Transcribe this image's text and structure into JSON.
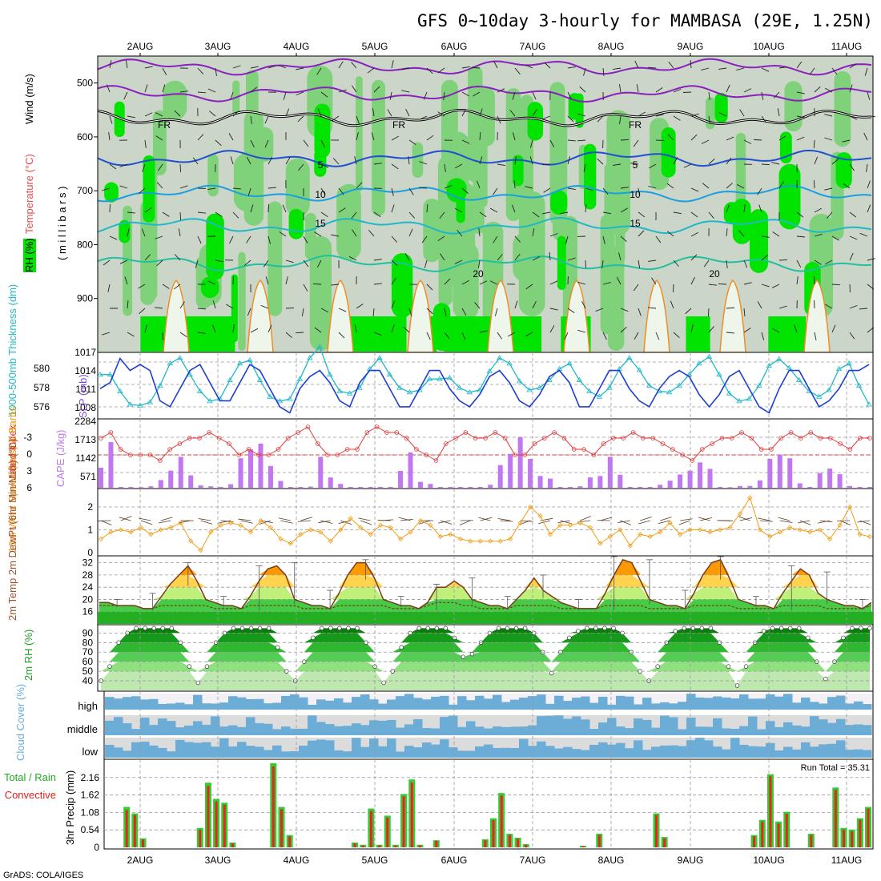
{
  "header": {
    "title": "GFS 0~10day 3-hourly for MAMBASA (29E, 1.25N)",
    "footer": "GrADS: COLA/IGES"
  },
  "x_axis": {
    "date_labels": [
      "2AUG",
      "3AUG",
      "4AUG",
      "5AUG",
      "6AUG",
      "7AUG",
      "8AUG",
      "9AUG",
      "10AUG",
      "11AUG"
    ]
  },
  "colors": {
    "rh_fill": [
      "#cbd6c8",
      "#7fd17a",
      "#00e400"
    ],
    "slp_line": "#1d3ed0",
    "thickness_line": "#22b8c8",
    "lifted_index": "#e03a3a",
    "cape_bar": "#c077f0",
    "wind_speed": "#f39c12",
    "temp_fill": [
      "#ff9900",
      "#ffd34d",
      "#c0f07a",
      "#44cc44"
    ],
    "rh2m_fill": [
      "#0b7d0b",
      "#2fb82f",
      "#8fe07f"
    ],
    "cloud_fill": "#6badd6",
    "precip_total": "#33cc33",
    "precip_conv": "#ee2222"
  },
  "chart_data": [
    {
      "id": "upper_air",
      "type": "heatmap",
      "ylabel_parts": [
        "RH (%)",
        "Temperature (°C)",
        "Wind (m/s)"
      ],
      "ylabel_units": "( m i l l i b a r s )",
      "y_ticks": [
        500,
        600,
        700,
        800,
        900
      ],
      "ylim": [
        1000,
        450
      ],
      "isotherm_labels": [
        {
          "label": "FR",
          "positions": [
            "2AUG",
            "5AUG",
            "8AUG"
          ]
        },
        {
          "label": "5",
          "positions": [
            "4AUG",
            "8AUG"
          ]
        },
        {
          "label": "10",
          "positions": [
            "4AUG",
            "8AUG"
          ]
        },
        {
          "label": "15",
          "positions": [
            "4AUG",
            "8AUG"
          ]
        },
        {
          "label": "20",
          "positions": [
            "6AUG",
            "9AUG"
          ]
        }
      ]
    },
    {
      "id": "slp_thickness",
      "type": "line",
      "ylabel_left": "1000-500mb Thickness (dm)",
      "ylabel_right": "SLP (mb)",
      "left_ticks": [
        "580",
        "578",
        "576"
      ],
      "right_ticks": [
        "1017",
        "1014",
        "1011",
        "1008"
      ],
      "series": [
        {
          "name": "SLP (mb)",
          "ylim": [
            1006,
            1017
          ],
          "values": [
            1011,
            1012,
            1016,
            1014,
            1015,
            1014,
            1009,
            1008,
            1011,
            1014,
            1015,
            1012,
            1009,
            1009,
            1012,
            1015,
            1014,
            1011,
            1008,
            1007,
            1011,
            1013,
            1014,
            1012,
            1009,
            1008,
            1012,
            1014,
            1014,
            1011,
            1008,
            1008,
            1011,
            1014,
            1014,
            1011,
            1009,
            1008,
            1010,
            1013,
            1014,
            1012,
            1009,
            1008,
            1010,
            1013,
            1014,
            1012,
            1008,
            1008,
            1011,
            1014,
            1014,
            1011,
            1009,
            1008,
            1011,
            1013,
            1014,
            1013,
            1010,
            1008,
            1010,
            1013,
            1014,
            1011,
            1008,
            1007,
            1011,
            1014,
            1014,
            1011,
            1008,
            1009,
            1011,
            1014,
            1014,
            1015
          ]
        },
        {
          "name": "1000-500mb Thickness (dm)",
          "ylim": [
            575,
            581
          ],
          "values": [
            579,
            579,
            577.5,
            576.3,
            576.2,
            576.5,
            578,
            580,
            580.5,
            579,
            577.5,
            576.6,
            576.8,
            578.5,
            580,
            580.3,
            578.5,
            577,
            576.6,
            576.8,
            578.6,
            580.5,
            581.5,
            579,
            577.5,
            577.3,
            577.8,
            579.5,
            580.5,
            579,
            577.8,
            577.4,
            577.6,
            578.6,
            578.6,
            578.7,
            577.8,
            577.4,
            577.6,
            579.3,
            580.5,
            580,
            578.4,
            577.6,
            577.8,
            578.5,
            579.5,
            580,
            578.5,
            577.5,
            577,
            577.8,
            579.5,
            580.5,
            579.4,
            578,
            577.5,
            577.4,
            578,
            579,
            580,
            580.6,
            579,
            577.3,
            576.6,
            576.8,
            578,
            579.8,
            580.4,
            579.6,
            578.5,
            577.5,
            577,
            577.6,
            579.5,
            580,
            578,
            576.3
          ]
        }
      ]
    },
    {
      "id": "lifted_cape",
      "type": "bar",
      "ylabel_left": "Lifted Index",
      "ylabel_right": "CAPE (J/kg)",
      "left_ticks": [
        "-3",
        "0",
        "3",
        "6"
      ],
      "right_ticks": [
        "2284",
        "1713",
        "1142",
        "571"
      ],
      "series": [
        {
          "name": "Lifted Index",
          "ylim": [
            6,
            -6
          ],
          "values": [
            -3,
            -4,
            -1,
            0,
            0,
            0,
            1,
            -1,
            -2,
            -3,
            -3,
            -4,
            -3,
            -2,
            0,
            -1,
            0,
            0,
            -1,
            -3,
            -4,
            -5,
            -2,
            0,
            0,
            -1,
            -1,
            -4,
            -5,
            -4,
            -4,
            -3,
            -1,
            0,
            1,
            -2,
            -3,
            -4,
            -3,
            -3,
            -4,
            -3,
            0,
            0,
            -2,
            -3,
            -4,
            -3,
            -1,
            -1,
            0,
            -2,
            -3,
            -3,
            -4,
            -3,
            -3,
            -2,
            -1,
            0,
            1,
            -1,
            -2,
            -3,
            -3,
            -4,
            -3,
            -1,
            -1,
            -3,
            -4,
            -3,
            -4,
            -3,
            -3,
            -2,
            -1,
            -3,
            -3
          ]
        },
        {
          "name": "CAPE (J/kg)",
          "ylim": [
            0,
            2284
          ],
          "values": [
            680,
            1550,
            30,
            30,
            20,
            50,
            260,
            580,
            1050,
            420,
            80,
            50,
            30,
            120,
            1000,
            1300,
            1500,
            740,
            230,
            30,
            30,
            40,
            1050,
            350,
            130,
            30,
            30,
            30,
            30,
            30,
            570,
            1200,
            200,
            130,
            30,
            30,
            30,
            30,
            30,
            100,
            770,
            1150,
            1720,
            980,
            400,
            310,
            30,
            30,
            50,
            350,
            400,
            1050,
            440,
            30,
            30,
            30,
            100,
            240,
            450,
            580,
            860,
            640,
            30,
            20,
            60,
            60,
            250,
            980,
            1120,
            1000,
            150,
            30,
            500,
            650,
            460,
            60,
            30,
            30
          ]
        }
      ]
    },
    {
      "id": "wind10m",
      "type": "line",
      "ylabel": "10m Wind Speed (m/s) & Barbs",
      "y_ticks": [
        2,
        1,
        0
      ],
      "ylim": [
        0,
        2.7
      ],
      "series": [
        {
          "name": "10m Wind Speed",
          "values": [
            0.6,
            0.9,
            1.0,
            0.9,
            1.1,
            0.8,
            1.0,
            1.1,
            1.3,
            0.5,
            0.1,
            0.9,
            1.2,
            1.3,
            1.2,
            0.9,
            1.4,
            1.1,
            0.6,
            0.4,
            0.8,
            1.0,
            0.9,
            0.5,
            1.0,
            1.5,
            1.1,
            0.8,
            1.2,
            1.1,
            0.6,
            0.9,
            1.4,
            1.2,
            0.7,
            0.8,
            0.6,
            0.5,
            0.5,
            0.5,
            0.5,
            0.6,
            1.3,
            2.0,
            1.6,
            0.8,
            1.2,
            1.2,
            1.3,
            1.1,
            0.4,
            0.7,
            1.0,
            0.3,
            0.8,
            0.7,
            0.9,
            1.3,
            0.8,
            1.0,
            1.0,
            0.9,
            1.0,
            1.1,
            1.7,
            2.4,
            1.0,
            0.7,
            0.9,
            1.1,
            1.0,
            0.9,
            1.0,
            0.6,
            1.2,
            2.0,
            0.8,
            0.7
          ]
        }
      ]
    },
    {
      "id": "temp2m",
      "type": "area",
      "ylabel": "2m Temp 2m DewPt (6hr Min/Max) (°C)",
      "y_ticks": [
        32,
        28,
        24,
        20,
        16
      ],
      "ylim": [
        12,
        34
      ],
      "series": [
        {
          "name": "2m Temp",
          "values": [
            19,
            19,
            18,
            18,
            18,
            17,
            17,
            21,
            25,
            28,
            31,
            26,
            20,
            19,
            18,
            18,
            17,
            21,
            26,
            30,
            31,
            28,
            20,
            19,
            18,
            18,
            17,
            22,
            28,
            32,
            32,
            27,
            20,
            19,
            18,
            18,
            17,
            19,
            24,
            24,
            26,
            24,
            20,
            19,
            18,
            18,
            17,
            20,
            23,
            27,
            23,
            21,
            19,
            18,
            17,
            17,
            17,
            22,
            28,
            33,
            32,
            26,
            20,
            19,
            18,
            18,
            17,
            22,
            28,
            32,
            33,
            27,
            20,
            19,
            18,
            18,
            17,
            22,
            26,
            30,
            28,
            22,
            20,
            19,
            18,
            18,
            17,
            19
          ]
        },
        {
          "name": "2m DewPt",
          "values": [
            18,
            18,
            18,
            18,
            18,
            17,
            17,
            18,
            18,
            18,
            18,
            18,
            18,
            17,
            17,
            17,
            17,
            18,
            18,
            18,
            18,
            18,
            18,
            17,
            17,
            17,
            17,
            18,
            18,
            18,
            18,
            18,
            18,
            17,
            17,
            17,
            17,
            18,
            19,
            19,
            19,
            18,
            18,
            17,
            17,
            17,
            17,
            18,
            18,
            18,
            18,
            18,
            17,
            17,
            17,
            17,
            17,
            18,
            18,
            18,
            18,
            18,
            17,
            17,
            17,
            17,
            17,
            18,
            18,
            18,
            18,
            18,
            17,
            17,
            17,
            17,
            17,
            18,
            18,
            18,
            18,
            18,
            17,
            17,
            17,
            17,
            17,
            18
          ]
        }
      ]
    },
    {
      "id": "rh2m",
      "type": "area",
      "ylabel": "2m RH (%)",
      "y_ticks": [
        90,
        80,
        70,
        60,
        50,
        40
      ],
      "ylim": [
        30,
        97
      ],
      "series": [
        {
          "name": "2m RH",
          "values": [
            40,
            55,
            80,
            90,
            95,
            95,
            95,
            95,
            95,
            80,
            55,
            38,
            55,
            80,
            90,
            95,
            95,
            95,
            95,
            95,
            75,
            50,
            40,
            60,
            85,
            95,
            95,
            95,
            95,
            95,
            80,
            55,
            38,
            50,
            75,
            90,
            95,
            95,
            95,
            95,
            85,
            65,
            68,
            80,
            90,
            95,
            95,
            95,
            95,
            90,
            70,
            48,
            70,
            85,
            92,
            95,
            95,
            95,
            95,
            90,
            70,
            50,
            40,
            55,
            80,
            92,
            95,
            95,
            95,
            95,
            80,
            55,
            35,
            55,
            80,
            92,
            95,
            95,
            95,
            95,
            85,
            60,
            42,
            60,
            85,
            95,
            95,
            95
          ]
        }
      ]
    },
    {
      "id": "cloud_cover",
      "type": "bar",
      "ylabel": "Cloud Cover (%)",
      "row_labels": [
        "high",
        "middle",
        "low"
      ]
    },
    {
      "id": "precip",
      "type": "bar",
      "ylabel_left": "Total / Rain",
      "ylabel_left2": "Convective",
      "ylabel": "3hr Precip (mm)",
      "run_total": "Run Total = 35.31",
      "y_ticks": [
        "2.16",
        "1.62",
        "1.08",
        "0.54",
        "0"
      ],
      "ylim": [
        0,
        2.6
      ],
      "series": [
        {
          "name": "Total",
          "values": [
            0,
            1.25,
            1.05,
            0.28,
            0,
            0,
            0,
            0,
            0,
            0,
            0.6,
            2.0,
            1.5,
            1.38,
            0.15,
            0,
            0,
            0,
            0,
            2.6,
            1.25,
            0.38,
            0,
            0,
            0,
            0,
            0,
            0,
            0,
            0.15,
            0.08,
            1.2,
            0.08,
            0.98,
            0.08,
            1.65,
            2.1,
            0.08,
            0,
            0.22,
            0,
            0,
            0,
            0,
            0,
            0.25,
            0.9,
            1.68,
            0.42,
            0.3,
            0.1,
            0,
            0,
            0,
            0,
            0,
            0,
            0.05,
            0,
            0.42,
            0,
            0,
            0,
            0,
            0,
            0,
            1.05,
            0.32,
            0,
            0,
            0,
            0,
            0,
            0,
            0,
            0,
            0,
            0,
            0.38,
            0.85,
            2.26,
            0.8,
            1.1,
            0,
            0,
            0.42,
            0,
            0,
            1.85,
            0.6,
            0.55,
            0.9,
            1.25
          ]
        },
        {
          "name": "Convective",
          "values": [
            0,
            1.15,
            1.0,
            0.24,
            0,
            0,
            0,
            0,
            0,
            0,
            0.55,
            1.9,
            1.42,
            1.32,
            0.12,
            0,
            0,
            0,
            0,
            2.5,
            1.18,
            0.34,
            0,
            0,
            0,
            0,
            0,
            0,
            0,
            0.12,
            0.06,
            1.12,
            0.06,
            0.92,
            0.06,
            1.58,
            2.0,
            0.06,
            0,
            0.2,
            0,
            0,
            0,
            0,
            0,
            0.22,
            0.84,
            1.6,
            0.38,
            0.26,
            0.08,
            0,
            0,
            0,
            0,
            0,
            0,
            0.04,
            0,
            0.38,
            0,
            0,
            0,
            0,
            0,
            0,
            1.0,
            0.28,
            0,
            0,
            0,
            0,
            0,
            0,
            0,
            0,
            0,
            0,
            0.34,
            0.8,
            2.2,
            0.74,
            1.04,
            0,
            0,
            0.38,
            0,
            0,
            1.78,
            0.55,
            0.5,
            0.85,
            1.2
          ]
        }
      ]
    }
  ]
}
